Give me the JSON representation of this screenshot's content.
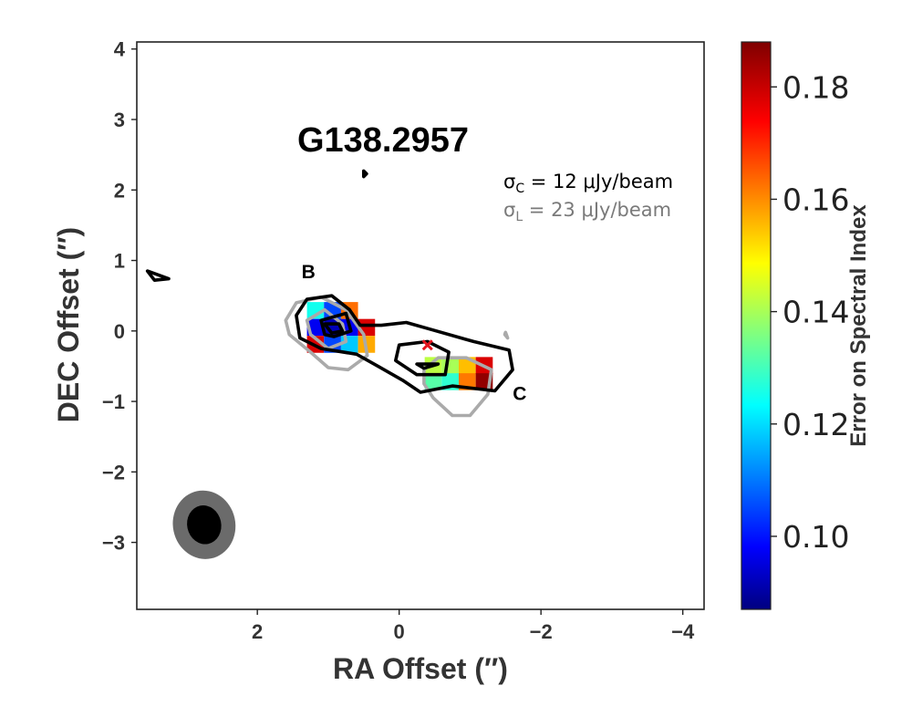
{
  "chart_data": {
    "type": "heatmap",
    "title": "G138.2957",
    "xlabel": "RA Offset (″)",
    "ylabel": "DEC Offset (″)",
    "xlim": [
      3.7,
      -4.3
    ],
    "ylim": [
      -3.95,
      4.1
    ],
    "xticks": [
      2,
      0,
      -2,
      -4
    ],
    "xtick_labels": [
      "2",
      "0",
      "−2",
      "−4"
    ],
    "yticks": [
      4,
      3,
      2,
      1,
      0,
      -1,
      -2,
      -3
    ],
    "ytick_labels": [
      "4",
      "3",
      "2",
      "1",
      "0",
      "−1",
      "−2",
      "−3"
    ],
    "colorbar": {
      "label": "Error on Spectral Index",
      "colormap": "jet",
      "range": [
        0.087,
        0.188
      ],
      "ticks": [
        0.1,
        0.12,
        0.14,
        0.16,
        0.18
      ],
      "tick_labels": [
        "0.10",
        "0.12",
        "0.14",
        "0.16",
        "0.18"
      ]
    },
    "annotations": {
      "sigma_c": "σC = 12 μJy/beam",
      "sigma_l": "σL = 23 μJy/beam",
      "components": [
        {
          "label": "B",
          "x": 1.28,
          "y": 0.75
        },
        {
          "label": "C",
          "x": -1.7,
          "y": -0.98
        }
      ]
    },
    "pixel_size_arcsec": 0.24,
    "pixels": [
      {
        "x": 1.18,
        "y": 0.29,
        "v": 0.125
      },
      {
        "x": 0.94,
        "y": 0.29,
        "v": 0.105
      },
      {
        "x": 0.7,
        "y": 0.29,
        "v": 0.163
      },
      {
        "x": 1.18,
        "y": 0.05,
        "v": 0.097
      },
      {
        "x": 0.94,
        "y": 0.05,
        "v": 0.092
      },
      {
        "x": 0.7,
        "y": 0.05,
        "v": 0.097
      },
      {
        "x": 0.46,
        "y": 0.05,
        "v": 0.178
      },
      {
        "x": 1.18,
        "y": -0.19,
        "v": 0.178
      },
      {
        "x": 0.94,
        "y": -0.19,
        "v": 0.105
      },
      {
        "x": 0.7,
        "y": -0.19,
        "v": 0.118
      },
      {
        "x": 0.46,
        "y": -0.19,
        "v": 0.157
      },
      {
        "x": -0.48,
        "y": -0.49,
        "v": 0.142
      },
      {
        "x": -0.72,
        "y": -0.49,
        "v": 0.14
      },
      {
        "x": -0.96,
        "y": -0.49,
        "v": 0.155
      },
      {
        "x": -1.2,
        "y": -0.49,
        "v": 0.178
      },
      {
        "x": -0.48,
        "y": -0.72,
        "v": 0.132
      },
      {
        "x": -0.72,
        "y": -0.72,
        "v": 0.128
      },
      {
        "x": -0.96,
        "y": -0.72,
        "v": 0.162
      },
      {
        "x": -1.2,
        "y": -0.72,
        "v": 0.186
      }
    ],
    "contours_c_band": [
      {
        "level": 1,
        "points": [
          [
            1.45,
            0.22
          ],
          [
            1.3,
            0.45
          ],
          [
            0.95,
            0.5
          ],
          [
            0.7,
            0.3
          ],
          [
            0.55,
            0.08
          ],
          [
            0.25,
            0.08
          ],
          [
            -0.1,
            0.12
          ],
          [
            -0.45,
            0.02
          ],
          [
            -1.05,
            -0.15
          ],
          [
            -1.55,
            -0.27
          ],
          [
            -1.6,
            -0.55
          ],
          [
            -1.35,
            -0.85
          ],
          [
            -0.75,
            -0.78
          ],
          [
            -0.3,
            -0.87
          ],
          [
            -0.05,
            -0.7
          ],
          [
            0.3,
            -0.5
          ],
          [
            0.6,
            -0.33
          ],
          [
            1.1,
            -0.25
          ],
          [
            1.4,
            -0.1
          ]
        ]
      },
      {
        "level": 2,
        "points": [
          [
            1.1,
            0.15
          ],
          [
            0.75,
            0.25
          ],
          [
            0.68,
            0.0
          ],
          [
            0.92,
            -0.08
          ],
          [
            1.05,
            -0.05
          ]
        ]
      },
      {
        "level": 2,
        "points": [
          [
            0.0,
            -0.2
          ],
          [
            -0.4,
            -0.15
          ],
          [
            -0.7,
            -0.3
          ],
          [
            -0.65,
            -0.62
          ],
          [
            -0.25,
            -0.62
          ],
          [
            0.05,
            -0.42
          ]
        ]
      },
      {
        "level": 3,
        "points": [
          [
            1.05,
            0.1
          ],
          [
            0.85,
            0.1
          ],
          [
            0.8,
            0.0
          ],
          [
            0.95,
            -0.03
          ]
        ]
      },
      {
        "level": 3,
        "points": [
          [
            -0.25,
            -0.47
          ],
          [
            -0.55,
            -0.47
          ],
          [
            -0.35,
            -0.53
          ]
        ]
      },
      {
        "level": 1,
        "points": [
          [
            3.55,
            0.85
          ],
          [
            3.25,
            0.74
          ],
          [
            3.45,
            0.72
          ]
        ]
      },
      {
        "level": 1,
        "points": [
          [
            0.5,
            2.27
          ],
          [
            0.46,
            2.23
          ],
          [
            0.5,
            2.19
          ]
        ]
      }
    ],
    "contours_l_band": [
      {
        "level": 1,
        "points": [
          [
            1.6,
            0.15
          ],
          [
            1.45,
            0.4
          ],
          [
            1.1,
            0.48
          ],
          [
            0.75,
            0.3
          ],
          [
            0.5,
            -0.05
          ],
          [
            0.45,
            -0.35
          ],
          [
            0.72,
            -0.55
          ],
          [
            1.0,
            -0.52
          ],
          [
            1.25,
            -0.3
          ],
          [
            1.55,
            -0.05
          ]
        ]
      },
      {
        "level": 2,
        "points": [
          [
            1.3,
            0.15
          ],
          [
            1.05,
            0.3
          ],
          [
            0.8,
            0.1
          ],
          [
            0.75,
            -0.15
          ],
          [
            1.0,
            -0.25
          ],
          [
            1.25,
            -0.05
          ]
        ]
      },
      {
        "level": 1,
        "points": [
          [
            -0.35,
            -0.55
          ],
          [
            -0.55,
            -0.38
          ],
          [
            -0.95,
            -0.38
          ],
          [
            -1.3,
            -0.55
          ],
          [
            -1.25,
            -0.9
          ],
          [
            -1.0,
            -1.2
          ],
          [
            -0.75,
            -1.2
          ],
          [
            -0.48,
            -0.95
          ],
          [
            -0.35,
            -0.75
          ]
        ]
      },
      {
        "level": 1,
        "points": [
          [
            -1.5,
            -0.02
          ],
          [
            -1.53,
            -0.1
          ],
          [
            -1.49,
            -0.05
          ]
        ]
      }
    ],
    "peak_marker": {
      "x": -0.4,
      "y": -0.2,
      "symbol": "x",
      "color": "#e4141e"
    },
    "beams": [
      {
        "band": "L",
        "x": 2.75,
        "y": -2.75,
        "major": 0.97,
        "minor": 0.88,
        "color": "#6b6b6b"
      },
      {
        "band": "C",
        "x": 2.75,
        "y": -2.75,
        "major": 0.55,
        "minor": 0.48,
        "color": "#000000"
      }
    ]
  }
}
